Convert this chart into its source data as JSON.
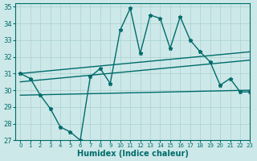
{
  "xlabel": "Humidex (Indice chaleur)",
  "xlim": [
    -0.5,
    23
  ],
  "ylim": [
    27,
    35.2
  ],
  "yticks": [
    27,
    28,
    29,
    30,
    31,
    32,
    33,
    34,
    35
  ],
  "xticks": [
    0,
    1,
    2,
    3,
    4,
    5,
    6,
    7,
    8,
    9,
    10,
    11,
    12,
    13,
    14,
    15,
    16,
    17,
    18,
    19,
    20,
    21,
    22,
    23
  ],
  "bg_color": "#cde8e8",
  "grid_color": "#aad0d0",
  "line_color": "#006b6b",
  "lines": [
    {
      "x": [
        0,
        1,
        2,
        3,
        4,
        5,
        6,
        7,
        8,
        9,
        10,
        11,
        12,
        13,
        14,
        15,
        16,
        17,
        18,
        19,
        20,
        21,
        22,
        23
      ],
      "y": [
        31.0,
        30.7,
        29.7,
        28.9,
        27.8,
        27.5,
        27.0,
        30.8,
        31.3,
        30.4,
        33.6,
        34.9,
        32.2,
        34.5,
        34.3,
        32.5,
        34.4,
        33.0,
        32.3,
        31.7,
        30.3,
        30.7,
        29.9,
        29.9
      ],
      "marker": "*",
      "markersize": 3.5,
      "linewidth": 1.0
    },
    {
      "x": [
        0,
        23
      ],
      "y": [
        31.0,
        32.3
      ],
      "marker": "",
      "markersize": 0,
      "linewidth": 1.0
    },
    {
      "x": [
        0,
        23
      ],
      "y": [
        30.5,
        31.8
      ],
      "marker": "",
      "markersize": 0,
      "linewidth": 1.0
    },
    {
      "x": [
        0,
        23
      ],
      "y": [
        29.7,
        30.0
      ],
      "marker": "",
      "markersize": 0,
      "linewidth": 1.0
    }
  ]
}
